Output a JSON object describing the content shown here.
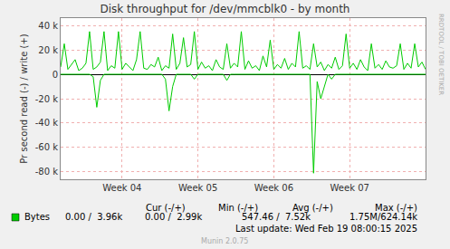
{
  "chart_data": {
    "type": "line",
    "title": "Disk throughput for /dev/mmcblk0 - by month",
    "y_label": "Pr second read (-) / write (+)",
    "categories": [
      null,
      null,
      null,
      null,
      null,
      null,
      null,
      null,
      null,
      null,
      null,
      null,
      null,
      null,
      null,
      null,
      null,
      "Week 04",
      null,
      null,
      null,
      null,
      null,
      null,
      null,
      null,
      null,
      null,
      null,
      null,
      null,
      null,
      null,
      null,
      null,
      null,
      null,
      null,
      "Week 05",
      null,
      null,
      null,
      null,
      null,
      null,
      null,
      null,
      null,
      null,
      null,
      null,
      null,
      null,
      null,
      null,
      null,
      null,
      null,
      null,
      "Week 06",
      null,
      null,
      null,
      null,
      null,
      null,
      null,
      null,
      null,
      null,
      null,
      null,
      null,
      null,
      null,
      null,
      null,
      null,
      null,
      null,
      "Week 07",
      null,
      null,
      null,
      null,
      null,
      null,
      null,
      null,
      null,
      null,
      null,
      null,
      null,
      null,
      null,
      null,
      null,
      null,
      null,
      null,
      null
    ],
    "series": [
      {
        "name": "Bytes",
        "color": "#00cc00",
        "values": [
          6000,
          25000,
          4000,
          8000,
          12000,
          3000,
          5000,
          9000,
          35000,
          4000,
          6000,
          10000,
          35000,
          3000,
          7000,
          5000,
          35000,
          4000,
          9000,
          6000,
          3000,
          12000,
          35000,
          5000,
          4000,
          8000,
          6000,
          14000,
          3000,
          7000,
          5000,
          33000,
          4000,
          9000,
          30000,
          6000,
          8000,
          35000,
          4000,
          10000,
          5000,
          7000,
          3000,
          12000,
          6000,
          4000,
          25000,
          5000,
          9000,
          6000,
          35000,
          4000,
          11000,
          5000,
          7000,
          3000,
          15000,
          6000,
          28000,
          4000,
          8000,
          5000,
          13000,
          4000,
          9000,
          6000,
          35000,
          5000,
          7000,
          4000,
          25000,
          6000,
          10000,
          3000,
          8000,
          5000,
          14000,
          4000,
          7000,
          33000,
          5000,
          9000,
          4000,
          12000,
          6000,
          3000,
          25000,
          5000,
          8000,
          4000,
          11000,
          6000,
          5000,
          7000,
          25000,
          4000,
          9000,
          5000,
          25000,
          6000,
          10000,
          4000
        ],
        "read_values": [
          0,
          0,
          0,
          0,
          0,
          0,
          0,
          0,
          0,
          -2000,
          -27000,
          -5000,
          0,
          0,
          0,
          0,
          0,
          0,
          0,
          0,
          0,
          0,
          0,
          0,
          0,
          0,
          0,
          0,
          0,
          -4000,
          -30000,
          -10000,
          0,
          0,
          0,
          0,
          0,
          -4000,
          0,
          0,
          0,
          0,
          0,
          0,
          0,
          0,
          -5000,
          0,
          0,
          0,
          0,
          0,
          0,
          0,
          0,
          0,
          0,
          0,
          0,
          0,
          0,
          0,
          0,
          0,
          0,
          0,
          0,
          0,
          0,
          0,
          -81000,
          -6000,
          -20000,
          -10000,
          0,
          -4000,
          0,
          0,
          0,
          0,
          0,
          0,
          0,
          0,
          0,
          0,
          0,
          0,
          0,
          0,
          0,
          0,
          0,
          0,
          0,
          0,
          0,
          0,
          0,
          0,
          0,
          0
        ]
      }
    ],
    "ylim": [
      -86000,
      46000
    ],
    "yticks": [
      {
        "value": -80000,
        "label": "-80 k"
      },
      {
        "value": -60000,
        "label": "-60 k"
      },
      {
        "value": -40000,
        "label": "-40 k"
      },
      {
        "value": -20000,
        "label": "-20 k"
      },
      0,
      {
        "value": 20000,
        "label": "20 k"
      },
      {
        "value": 40000,
        "label": "40 k"
      }
    ],
    "grid": true,
    "stats": {
      "columns": [
        "Cur (-/+)",
        "Min (-/+)",
        "Avg (-/+)",
        "Max (-/+)"
      ],
      "values": [
        "0.00 /  3.96k",
        "0.00 /  2.99k",
        "547.46 /  7.52k",
        "1.75M/624.14k"
      ]
    },
    "annotations": [
      "Last update: Wed Feb 19 08:00:15 2025",
      "Munin 2.0.75",
      "RRDTOOL / TOBI OETIKER"
    ]
  }
}
